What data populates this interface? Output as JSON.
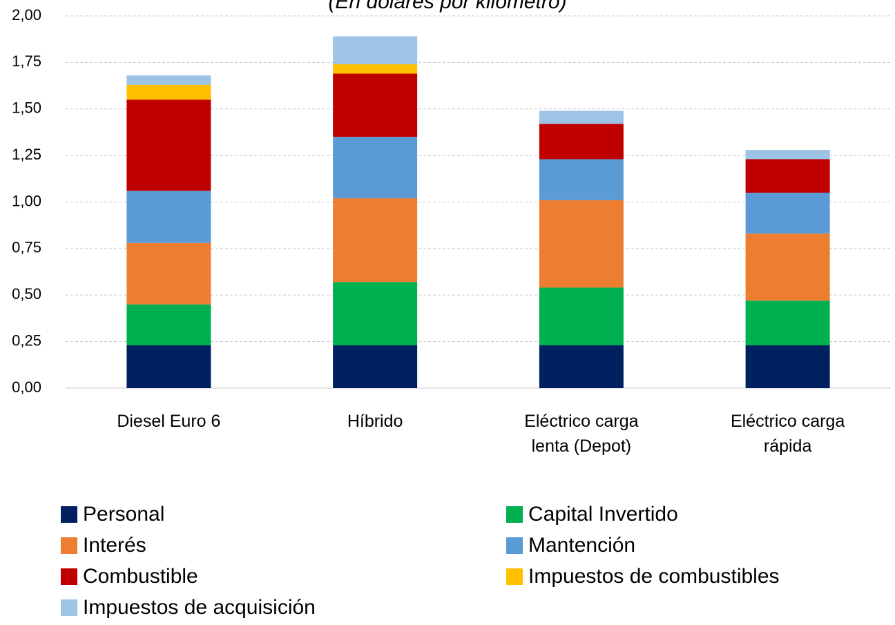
{
  "chart_data": {
    "type": "stacked_bar",
    "subtitle": "(En dólares por kilómetro)",
    "categories": [
      "Diesel Euro 6",
      "Híbrido",
      "Eléctrico carga lenta (Depot)",
      "Eléctrico carga rápida"
    ],
    "series": [
      {
        "name": "Personal",
        "color": "#002060",
        "values": [
          0.23,
          0.23,
          0.23,
          0.23
        ]
      },
      {
        "name": "Capital Invertido",
        "color": "#00b050",
        "values": [
          0.22,
          0.34,
          0.31,
          0.24
        ]
      },
      {
        "name": "Interés",
        "color": "#ed7d31",
        "values": [
          0.33,
          0.45,
          0.47,
          0.36
        ]
      },
      {
        "name": "Mantención",
        "color": "#5b9bd5",
        "values": [
          0.28,
          0.33,
          0.22,
          0.22
        ]
      },
      {
        "name": "Combustible",
        "color": "#c00000",
        "values": [
          0.49,
          0.34,
          0.19,
          0.18
        ]
      },
      {
        "name": "Impuestos de combustibles",
        "color": "#ffc000",
        "values": [
          0.08,
          0.05,
          0,
          0
        ]
      },
      {
        "name": "Impuestos de acquisición",
        "color": "#9dc3e6",
        "values": [
          0.05,
          0.15,
          0.07,
          0.05
        ]
      }
    ],
    "ylim": [
      0,
      2
    ],
    "yticks": [
      {
        "value": 0,
        "label": "0,00"
      },
      {
        "value": 0.25,
        "label": "0,25"
      },
      {
        "value": 0.5,
        "label": "0,50"
      },
      {
        "value": 0.75,
        "label": "0,75"
      },
      {
        "value": 1,
        "label": "1,00"
      },
      {
        "value": 1.25,
        "label": "1,25"
      },
      {
        "value": 1.5,
        "label": "1,50"
      },
      {
        "value": 1.75,
        "label": "1,75"
      },
      {
        "value": 2,
        "label": "2,00"
      }
    ],
    "grid": true
  }
}
